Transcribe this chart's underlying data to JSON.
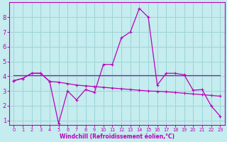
{
  "xlabel": "Windchill (Refroidissement éolien,°C)",
  "background_color": "#c5ecee",
  "grid_color": "#9ed4d8",
  "line_color": "#bb00bb",
  "spine_color": "#bb00bb",
  "xlim": [
    -0.5,
    23.5
  ],
  "ylim": [
    0.7,
    9.0
  ],
  "xticks": [
    0,
    1,
    2,
    3,
    4,
    5,
    6,
    7,
    8,
    9,
    10,
    11,
    12,
    13,
    14,
    15,
    16,
    17,
    18,
    19,
    20,
    21,
    22,
    23
  ],
  "yticks": [
    1,
    2,
    3,
    4,
    5,
    6,
    7,
    8
  ],
  "line1_x": [
    0,
    1,
    2,
    3,
    4,
    5,
    6,
    7,
    8,
    9,
    10,
    11,
    12,
    13,
    14,
    15,
    16,
    17,
    18,
    19,
    20,
    21,
    22,
    23
  ],
  "line1_y": [
    3.7,
    3.85,
    4.2,
    4.2,
    3.65,
    0.8,
    3.0,
    2.4,
    3.1,
    2.9,
    4.8,
    4.8,
    6.6,
    7.0,
    8.6,
    8.0,
    3.4,
    4.2,
    4.2,
    4.1,
    3.05,
    3.1,
    2.0,
    1.3
  ],
  "line2_x": [
    0,
    1,
    2,
    3,
    4,
    5,
    6,
    7,
    8,
    9,
    10,
    11,
    12,
    13,
    14,
    15,
    16,
    17,
    18,
    19,
    20,
    21,
    22,
    23
  ],
  "line2_y": [
    3.7,
    3.85,
    4.2,
    4.2,
    3.65,
    3.6,
    3.5,
    3.4,
    3.35,
    3.3,
    3.25,
    3.2,
    3.15,
    3.1,
    3.05,
    3.0,
    2.98,
    2.95,
    2.9,
    2.85,
    2.8,
    2.75,
    2.7,
    2.65
  ],
  "line3_x": [
    0,
    23
  ],
  "line3_y": [
    4.05,
    4.05
  ],
  "lw": 0.9,
  "marker": "+",
  "markersize": 3.0,
  "xlabel_fontsize": 5.5,
  "tick_fontsize_x": 4.8,
  "tick_fontsize_y": 6.0
}
